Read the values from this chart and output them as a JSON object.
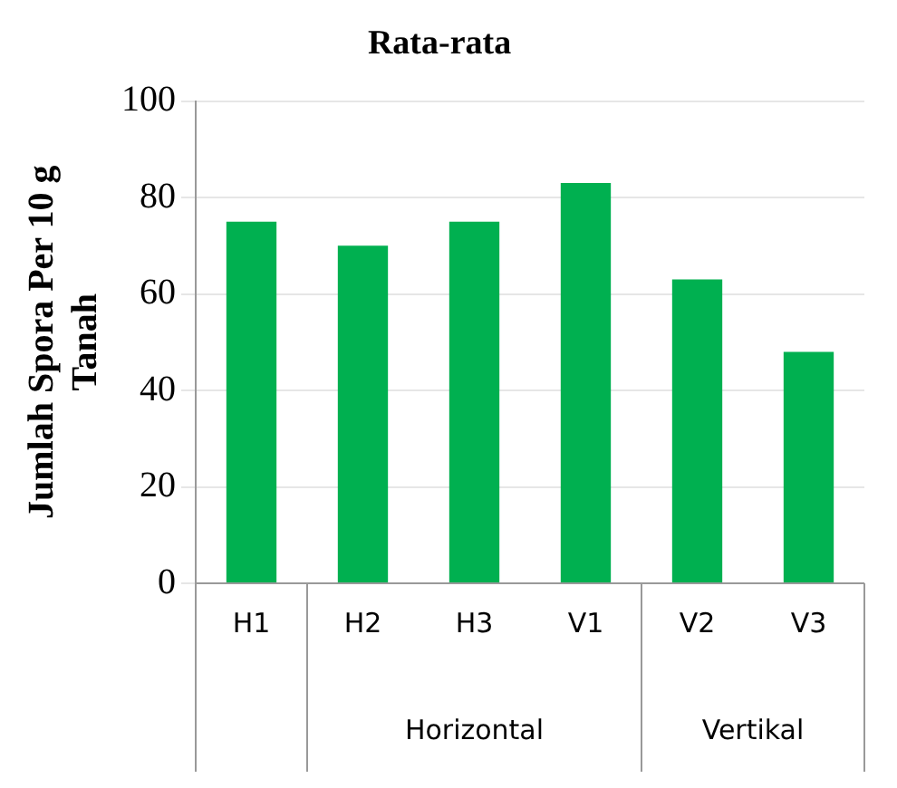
{
  "chart_data": {
    "type": "bar",
    "title": "Rata-rata",
    "ylabel": "Jumlah Spora Per 10 g Tanah",
    "categories": [
      "H1",
      "H2",
      "H3",
      "V1",
      "V2",
      "V3"
    ],
    "values": [
      75,
      70,
      75,
      83,
      63,
      48
    ],
    "color": "#00b050",
    "ylim": [
      0,
      100
    ],
    "yticks": [
      0,
      20,
      40,
      60,
      80,
      100
    ],
    "grid": "y",
    "legend": false,
    "annotations": [
      "Horizontal",
      "Vertikal"
    ]
  }
}
